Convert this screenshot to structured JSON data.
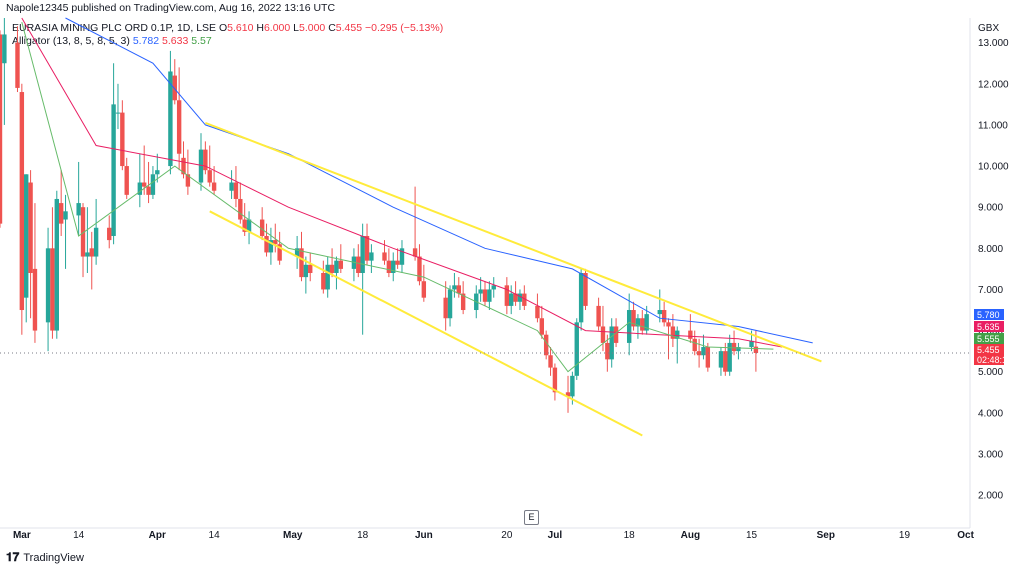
{
  "header": {
    "published": "Napole12345 published on TradingView.com, Aug 16, 2022 13:16 UTC"
  },
  "legend": {
    "symbol": "EURASIA MINING PLC ORD 0.1P, 1D, LSE",
    "o_label": "O",
    "o_value": "5.610",
    "h_label": "H",
    "h_value": "6.000",
    "l_label": "L",
    "l_value": "5.000",
    "c_label": "C",
    "c_value": "5.455",
    "change": "−0.295 (−5.13%)",
    "indicator": "Alligator (13, 8, 5, 8, 5, 3)",
    "jaw": "5.782",
    "teeth": "5.633",
    "lips": "5.57"
  },
  "colors": {
    "up": "#26a69a",
    "down": "#ef5350",
    "jaw": "#2962ff",
    "teeth": "#e91e63",
    "lips": "#66bb6a",
    "channel": "#ffeb3b",
    "price_line": "#787b86"
  },
  "price_tags": [
    {
      "text": "5.780",
      "color": "#2962ff"
    },
    {
      "text": "5.635",
      "color": "#e91e63"
    },
    {
      "text": "5.555",
      "color": "#43a047"
    },
    {
      "text": "5.455",
      "color": "#f23645"
    },
    {
      "text": "02:48:13",
      "color": "#f23645"
    }
  ],
  "footer": {
    "brand": "TradingView",
    "e_button": "E"
  },
  "chart_data": {
    "type": "candlestick",
    "currency": "GBX",
    "ylim": [
      1.2,
      13.6
    ],
    "yticks": [
      2,
      3,
      4,
      5,
      6,
      7,
      8,
      9,
      10,
      11,
      12,
      13
    ],
    "ytick_labels": [
      "2.000",
      "3.000",
      "4.000",
      "5.000",
      "6.000",
      "7.000",
      "8.000",
      "9.000",
      "10.000",
      "11.000",
      "12.000",
      "13.000"
    ],
    "xlim": [
      "2022-02-24",
      "2022-10-04"
    ],
    "xticks": [
      {
        "date": "2022-03-01",
        "label": "Mar"
      },
      {
        "date": "2022-03-14",
        "label": "14"
      },
      {
        "date": "2022-04-01",
        "label": "Apr"
      },
      {
        "date": "2022-04-14",
        "label": "14"
      },
      {
        "date": "2022-05-02",
        "label": "May"
      },
      {
        "date": "2022-05-18",
        "label": "18"
      },
      {
        "date": "2022-06-01",
        "label": "Jun"
      },
      {
        "date": "2022-06-20",
        "label": "20"
      },
      {
        "date": "2022-07-01",
        "label": "Jul"
      },
      {
        "date": "2022-07-18",
        "label": "18"
      },
      {
        "date": "2022-08-01",
        "label": "Aug"
      },
      {
        "date": "2022-08-15",
        "label": "15"
      },
      {
        "date": "2022-09-01",
        "label": "Sep"
      },
      {
        "date": "2022-09-19",
        "label": "19"
      },
      {
        "date": "2022-10-03",
        "label": "Oct"
      }
    ],
    "candles": [
      {
        "d": "2022-02-24",
        "o": 13.2,
        "h": 13.3,
        "l": 8.5,
        "c": 8.6
      },
      {
        "d": "2022-02-25",
        "o": 12.5,
        "h": 13.6,
        "l": 11.0,
        "c": 13.2
      },
      {
        "d": "2022-02-28",
        "o": 13.0,
        "h": 13.4,
        "l": 11.8,
        "c": 11.9
      },
      {
        "d": "2022-03-01",
        "o": 11.8,
        "h": 12.0,
        "l": 5.9,
        "c": 6.5
      },
      {
        "d": "2022-03-02",
        "o": 6.8,
        "h": 9.8,
        "l": 6.2,
        "c": 9.8
      },
      {
        "d": "2022-03-03",
        "o": 9.6,
        "h": 9.9,
        "l": 6.3,
        "c": 7.4
      },
      {
        "d": "2022-03-04",
        "o": 7.5,
        "h": 9.1,
        "l": 5.7,
        "c": 6.0
      },
      {
        "d": "2022-03-07",
        "o": 6.2,
        "h": 8.5,
        "l": 5.5,
        "c": 8.0
      },
      {
        "d": "2022-03-08",
        "o": 8.0,
        "h": 9.0,
        "l": 5.8,
        "c": 6.0
      },
      {
        "d": "2022-03-09",
        "o": 6.0,
        "h": 9.4,
        "l": 5.8,
        "c": 9.2
      },
      {
        "d": "2022-03-10",
        "o": 9.1,
        "h": 9.9,
        "l": 8.3,
        "c": 8.6
      },
      {
        "d": "2022-03-11",
        "o": 8.7,
        "h": 9.3,
        "l": 7.5,
        "c": 8.9
      },
      {
        "d": "2022-03-14",
        "o": 8.8,
        "h": 10.1,
        "l": 8.3,
        "c": 9.1
      },
      {
        "d": "2022-03-15",
        "o": 9.0,
        "h": 9.1,
        "l": 7.3,
        "c": 7.8
      },
      {
        "d": "2022-03-16",
        "o": 7.8,
        "h": 9.0,
        "l": 7.4,
        "c": 7.9
      },
      {
        "d": "2022-03-17",
        "o": 8.0,
        "h": 8.4,
        "l": 7.0,
        "c": 7.8
      },
      {
        "d": "2022-03-18",
        "o": 7.8,
        "h": 9.2,
        "l": 7.6,
        "c": 8.5
      },
      {
        "d": "2022-03-21",
        "o": 8.5,
        "h": 8.8,
        "l": 8.0,
        "c": 8.2
      },
      {
        "d": "2022-03-22",
        "o": 8.3,
        "h": 12.5,
        "l": 8.1,
        "c": 11.5
      },
      {
        "d": "2022-03-23",
        "o": 11.3,
        "h": 12.0,
        "l": 10.9,
        "c": 11.3
      },
      {
        "d": "2022-03-24",
        "o": 11.3,
        "h": 11.6,
        "l": 9.9,
        "c": 10.0
      },
      {
        "d": "2022-03-25",
        "o": 10.0,
        "h": 10.2,
        "l": 9.2,
        "c": 9.3
      },
      {
        "d": "2022-03-28",
        "o": 9.3,
        "h": 10.3,
        "l": 9.0,
        "c": 9.6
      },
      {
        "d": "2022-03-29",
        "o": 9.6,
        "h": 10.5,
        "l": 9.3,
        "c": 9.5
      },
      {
        "d": "2022-03-30",
        "o": 9.5,
        "h": 10.1,
        "l": 9.1,
        "c": 9.3
      },
      {
        "d": "2022-03-31",
        "o": 9.3,
        "h": 10.0,
        "l": 9.2,
        "c": 9.8
      },
      {
        "d": "2022-04-01",
        "o": 9.8,
        "h": 10.3,
        "l": 9.6,
        "c": 9.9
      },
      {
        "d": "2022-04-04",
        "o": 10.0,
        "h": 12.8,
        "l": 9.8,
        "c": 12.3
      },
      {
        "d": "2022-04-05",
        "o": 12.2,
        "h": 12.6,
        "l": 11.5,
        "c": 11.6
      },
      {
        "d": "2022-04-06",
        "o": 11.6,
        "h": 12.4,
        "l": 9.9,
        "c": 10.3
      },
      {
        "d": "2022-04-07",
        "o": 10.2,
        "h": 10.6,
        "l": 9.7,
        "c": 9.8
      },
      {
        "d": "2022-04-08",
        "o": 9.8,
        "h": 10.4,
        "l": 9.3,
        "c": 9.5
      },
      {
        "d": "2022-04-11",
        "o": 9.6,
        "h": 10.8,
        "l": 9.4,
        "c": 10.4
      },
      {
        "d": "2022-04-12",
        "o": 10.4,
        "h": 10.6,
        "l": 9.8,
        "c": 9.9
      },
      {
        "d": "2022-04-13",
        "o": 9.9,
        "h": 10.5,
        "l": 9.5,
        "c": 9.6
      },
      {
        "d": "2022-04-14",
        "o": 9.6,
        "h": 10.0,
        "l": 9.3,
        "c": 9.4
      },
      {
        "d": "2022-04-18",
        "o": 9.4,
        "h": 9.9,
        "l": 9.2,
        "c": 9.6
      },
      {
        "d": "2022-04-19",
        "o": 9.6,
        "h": 10.0,
        "l": 9.0,
        "c": 9.2
      },
      {
        "d": "2022-04-20",
        "o": 9.2,
        "h": 9.6,
        "l": 8.6,
        "c": 8.7
      },
      {
        "d": "2022-04-21",
        "o": 8.7,
        "h": 9.1,
        "l": 8.3,
        "c": 8.4
      },
      {
        "d": "2022-04-22",
        "o": 8.4,
        "h": 8.9,
        "l": 8.1,
        "c": 8.7
      },
      {
        "d": "2022-04-25",
        "o": 8.7,
        "h": 9.0,
        "l": 8.2,
        "c": 8.3
      },
      {
        "d": "2022-04-26",
        "o": 8.3,
        "h": 8.6,
        "l": 7.8,
        "c": 7.9
      },
      {
        "d": "2022-04-27",
        "o": 7.9,
        "h": 8.5,
        "l": 7.6,
        "c": 8.2
      },
      {
        "d": "2022-04-28",
        "o": 8.2,
        "h": 8.6,
        "l": 7.9,
        "c": 8.1
      },
      {
        "d": "2022-04-29",
        "o": 8.1,
        "h": 8.4,
        "l": 7.6,
        "c": 7.7
      },
      {
        "d": "2022-05-03",
        "o": 7.8,
        "h": 8.3,
        "l": 7.5,
        "c": 8.0
      },
      {
        "d": "2022-05-04",
        "o": 8.0,
        "h": 8.4,
        "l": 7.2,
        "c": 7.3
      },
      {
        "d": "2022-05-05",
        "o": 7.3,
        "h": 7.8,
        "l": 6.9,
        "c": 7.6
      },
      {
        "d": "2022-05-06",
        "o": 7.6,
        "h": 7.9,
        "l": 7.2,
        "c": 7.4
      },
      {
        "d": "2022-05-09",
        "o": 7.4,
        "h": 7.7,
        "l": 6.9,
        "c": 7.0
      },
      {
        "d": "2022-05-10",
        "o": 7.0,
        "h": 7.8,
        "l": 6.8,
        "c": 7.6
      },
      {
        "d": "2022-05-11",
        "o": 7.6,
        "h": 8.0,
        "l": 7.3,
        "c": 7.4
      },
      {
        "d": "2022-05-12",
        "o": 7.4,
        "h": 7.8,
        "l": 7.0,
        "c": 7.7
      },
      {
        "d": "2022-05-13",
        "o": 7.7,
        "h": 8.1,
        "l": 7.4,
        "c": 7.5
      },
      {
        "d": "2022-05-16",
        "o": 7.5,
        "h": 8.0,
        "l": 7.2,
        "c": 7.8
      },
      {
        "d": "2022-05-17",
        "o": 7.8,
        "h": 8.1,
        "l": 7.3,
        "c": 7.4
      },
      {
        "d": "2022-05-18",
        "o": 7.4,
        "h": 8.6,
        "l": 5.9,
        "c": 8.3
      },
      {
        "d": "2022-05-19",
        "o": 8.3,
        "h": 8.6,
        "l": 7.6,
        "c": 7.7
      },
      {
        "d": "2022-05-20",
        "o": 7.7,
        "h": 8.1,
        "l": 7.4,
        "c": 7.9
      },
      {
        "d": "2022-05-23",
        "o": 7.9,
        "h": 8.2,
        "l": 7.6,
        "c": 7.7
      },
      {
        "d": "2022-05-24",
        "o": 7.7,
        "h": 8.0,
        "l": 7.3,
        "c": 7.4
      },
      {
        "d": "2022-05-25",
        "o": 7.4,
        "h": 7.9,
        "l": 7.2,
        "c": 7.7
      },
      {
        "d": "2022-05-26",
        "o": 7.7,
        "h": 8.0,
        "l": 7.5,
        "c": 7.6
      },
      {
        "d": "2022-05-27",
        "o": 7.6,
        "h": 8.2,
        "l": 7.4,
        "c": 8.0
      },
      {
        "d": "2022-05-30",
        "o": 8.0,
        "h": 9.5,
        "l": 7.7,
        "c": 7.8
      },
      {
        "d": "2022-05-31",
        "o": 7.8,
        "h": 8.1,
        "l": 7.1,
        "c": 7.2
      },
      {
        "d": "2022-06-01",
        "o": 7.2,
        "h": 7.6,
        "l": 6.7,
        "c": 6.8
      },
      {
        "d": "2022-06-06",
        "o": 6.8,
        "h": 7.2,
        "l": 6.0,
        "c": 6.3
      },
      {
        "d": "2022-06-07",
        "o": 6.3,
        "h": 7.1,
        "l": 6.1,
        "c": 7.0
      },
      {
        "d": "2022-06-08",
        "o": 7.0,
        "h": 7.4,
        "l": 6.8,
        "c": 7.1
      },
      {
        "d": "2022-06-09",
        "o": 7.1,
        "h": 7.3,
        "l": 6.8,
        "c": 6.9
      },
      {
        "d": "2022-06-10",
        "o": 6.9,
        "h": 7.2,
        "l": 6.4,
        "c": 6.5
      },
      {
        "d": "2022-06-13",
        "o": 6.5,
        "h": 7.1,
        "l": 6.3,
        "c": 6.9
      },
      {
        "d": "2022-06-14",
        "o": 6.9,
        "h": 7.3,
        "l": 6.7,
        "c": 7.0
      },
      {
        "d": "2022-06-15",
        "o": 7.0,
        "h": 7.2,
        "l": 6.6,
        "c": 6.7
      },
      {
        "d": "2022-06-16",
        "o": 6.7,
        "h": 7.2,
        "l": 6.5,
        "c": 7.0
      },
      {
        "d": "2022-06-17",
        "o": 7.0,
        "h": 7.3,
        "l": 6.8,
        "c": 7.1
      },
      {
        "d": "2022-06-20",
        "o": 7.1,
        "h": 7.3,
        "l": 6.4,
        "c": 6.6
      },
      {
        "d": "2022-06-21",
        "o": 6.6,
        "h": 7.1,
        "l": 6.4,
        "c": 6.9
      },
      {
        "d": "2022-06-22",
        "o": 6.9,
        "h": 7.2,
        "l": 6.6,
        "c": 6.7
      },
      {
        "d": "2022-06-23",
        "o": 6.7,
        "h": 7.0,
        "l": 6.5,
        "c": 6.9
      },
      {
        "d": "2022-06-24",
        "o": 6.9,
        "h": 7.1,
        "l": 6.5,
        "c": 6.6
      },
      {
        "d": "2022-06-27",
        "o": 6.6,
        "h": 6.9,
        "l": 6.2,
        "c": 6.3
      },
      {
        "d": "2022-06-28",
        "o": 6.3,
        "h": 6.6,
        "l": 5.8,
        "c": 5.9
      },
      {
        "d": "2022-06-29",
        "o": 5.9,
        "h": 6.0,
        "l": 5.3,
        "c": 5.4
      },
      {
        "d": "2022-06-30",
        "o": 5.4,
        "h": 5.6,
        "l": 4.9,
        "c": 5.1
      },
      {
        "d": "2022-07-01",
        "o": 5.1,
        "h": 5.2,
        "l": 4.3,
        "c": 4.5
      },
      {
        "d": "2022-07-04",
        "o": 4.5,
        "h": 4.9,
        "l": 4.0,
        "c": 4.4
      },
      {
        "d": "2022-07-05",
        "o": 4.4,
        "h": 5.0,
        "l": 4.2,
        "c": 4.9
      },
      {
        "d": "2022-07-06",
        "o": 4.9,
        "h": 6.3,
        "l": 4.8,
        "c": 6.2
      },
      {
        "d": "2022-07-07",
        "o": 6.2,
        "h": 7.5,
        "l": 6.0,
        "c": 7.4
      },
      {
        "d": "2022-07-08",
        "o": 7.4,
        "h": 7.5,
        "l": 6.5,
        "c": 6.6
      },
      {
        "d": "2022-07-11",
        "o": 6.6,
        "h": 6.8,
        "l": 6.0,
        "c": 6.1
      },
      {
        "d": "2022-07-12",
        "o": 6.1,
        "h": 6.6,
        "l": 5.5,
        "c": 5.7
      },
      {
        "d": "2022-07-13",
        "o": 5.7,
        "h": 5.9,
        "l": 5.0,
        "c": 5.3
      },
      {
        "d": "2022-07-14",
        "o": 5.3,
        "h": 6.3,
        "l": 5.1,
        "c": 6.1
      },
      {
        "d": "2022-07-15",
        "o": 6.1,
        "h": 6.3,
        "l": 5.6,
        "c": 5.7
      },
      {
        "d": "2022-07-18",
        "o": 5.7,
        "h": 6.9,
        "l": 5.4,
        "c": 6.5
      },
      {
        "d": "2022-07-19",
        "o": 6.5,
        "h": 6.7,
        "l": 6.0,
        "c": 6.1
      },
      {
        "d": "2022-07-20",
        "o": 6.1,
        "h": 6.4,
        "l": 5.8,
        "c": 6.3
      },
      {
        "d": "2022-07-21",
        "o": 6.3,
        "h": 6.5,
        "l": 5.9,
        "c": 6.0
      },
      {
        "d": "2022-07-22",
        "o": 6.0,
        "h": 6.6,
        "l": 5.9,
        "c": 6.4
      },
      {
        "d": "2022-07-25",
        "o": 6.4,
        "h": 7.0,
        "l": 6.2,
        "c": 6.5
      },
      {
        "d": "2022-07-26",
        "o": 6.5,
        "h": 6.7,
        "l": 6.1,
        "c": 6.2
      },
      {
        "d": "2022-07-27",
        "o": 6.2,
        "h": 6.3,
        "l": 5.3,
        "c": 6.1
      },
      {
        "d": "2022-07-28",
        "o": 6.1,
        "h": 6.4,
        "l": 5.6,
        "c": 5.8
      },
      {
        "d": "2022-07-29",
        "o": 5.8,
        "h": 6.1,
        "l": 5.2,
        "c": 6.0
      },
      {
        "d": "2022-08-01",
        "o": 6.0,
        "h": 6.4,
        "l": 5.7,
        "c": 5.8
      },
      {
        "d": "2022-08-02",
        "o": 5.8,
        "h": 6.0,
        "l": 5.4,
        "c": 5.5
      },
      {
        "d": "2022-08-03",
        "o": 5.5,
        "h": 5.8,
        "l": 5.1,
        "c": 5.4
      },
      {
        "d": "2022-08-04",
        "o": 5.4,
        "h": 5.9,
        "l": 5.3,
        "c": 5.6
      },
      {
        "d": "2022-08-05",
        "o": 5.6,
        "h": 5.7,
        "l": 5.0,
        "c": 5.1
      },
      {
        "d": "2022-08-08",
        "o": 5.1,
        "h": 5.6,
        "l": 4.9,
        "c": 5.5
      },
      {
        "d": "2022-08-09",
        "o": 5.5,
        "h": 5.7,
        "l": 4.9,
        "c": 5.0
      },
      {
        "d": "2022-08-10",
        "o": 5.0,
        "h": 5.9,
        "l": 4.9,
        "c": 5.7
      },
      {
        "d": "2022-08-11",
        "o": 5.7,
        "h": 6.0,
        "l": 5.4,
        "c": 5.5
      },
      {
        "d": "2022-08-12",
        "o": 5.5,
        "h": 5.7,
        "l": 5.3,
        "c": 5.6
      },
      {
        "d": "2022-08-15",
        "o": 5.6,
        "h": 6.0,
        "l": 5.5,
        "c": 5.75
      },
      {
        "d": "2022-08-16",
        "o": 5.61,
        "h": 6.0,
        "l": 5.0,
        "c": 5.455
      }
    ],
    "alligator": {
      "jaw": [
        [
          "2022-03-11",
          13.6
        ],
        [
          "2022-03-31",
          12.5
        ],
        [
          "2022-04-12",
          11.0
        ],
        [
          "2022-05-01",
          10.3
        ],
        [
          "2022-05-25",
          9.0
        ],
        [
          "2022-06-15",
          8.0
        ],
        [
          "2022-07-05",
          7.5
        ],
        [
          "2022-07-25",
          6.3
        ],
        [
          "2022-08-12",
          6.1
        ],
        [
          "2022-08-29",
          5.7
        ]
      ],
      "teeth": [
        [
          "2022-03-01",
          13.6
        ],
        [
          "2022-03-18",
          10.5
        ],
        [
          "2022-04-12",
          10.0
        ],
        [
          "2022-05-01",
          9.0
        ],
        [
          "2022-05-25",
          8.0
        ],
        [
          "2022-06-20",
          7.0
        ],
        [
          "2022-07-08",
          6.0
        ],
        [
          "2022-07-25",
          5.9
        ],
        [
          "2022-08-12",
          5.8
        ],
        [
          "2022-08-22",
          5.6
        ]
      ],
      "lips": [
        [
          "2022-03-01",
          13.5
        ],
        [
          "2022-03-14",
          8.3
        ],
        [
          "2022-04-05",
          10.0
        ],
        [
          "2022-05-01",
          8.0
        ],
        [
          "2022-06-01",
          7.3
        ],
        [
          "2022-06-27",
          6.0
        ],
        [
          "2022-07-04",
          5.0
        ],
        [
          "2022-07-18",
          6.2
        ],
        [
          "2022-08-05",
          5.6
        ],
        [
          "2022-08-20",
          5.55
        ]
      ]
    },
    "trendlines": [
      {
        "from": [
          "2022-04-12",
          11.05
        ],
        "to": [
          "2022-08-31",
          5.25
        ]
      },
      {
        "from": [
          "2022-04-13",
          8.9
        ],
        "to": [
          "2022-07-21",
          3.45
        ]
      }
    ],
    "last_price": 5.455
  }
}
